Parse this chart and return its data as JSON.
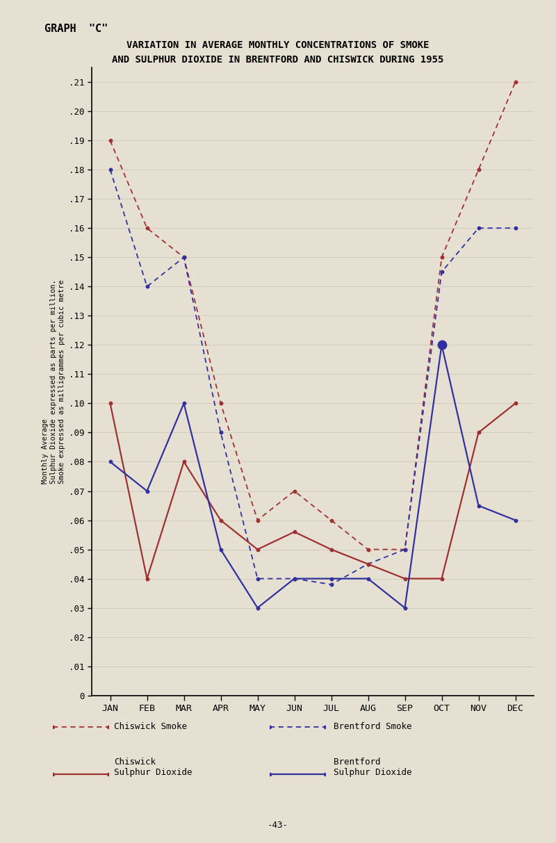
{
  "title_top": "GRAPH  \"C\"",
  "title_main_line1": "VARIATION IN AVERAGE MONTHLY CONCENTRATIONS OF SMOKE",
  "title_main_line2": "AND SULPHUR DIOXIDE IN BRENTFORD AND CHISWICK DURING 1955",
  "months": [
    "JAN",
    "FEB",
    "MAR",
    "APR",
    "MAY",
    "JUN",
    "JUL",
    "AUG",
    "SEP",
    "OCT",
    "NOV",
    "DEC"
  ],
  "chiswick_smoke": [
    0.19,
    0.16,
    0.15,
    0.1,
    0.06,
    0.07,
    0.06,
    0.05,
    0.05,
    0.15,
    0.18,
    0.21
  ],
  "brentford_smoke": [
    0.18,
    0.14,
    0.15,
    0.09,
    0.04,
    0.04,
    0.038,
    0.045,
    0.05,
    0.145,
    0.16,
    0.16
  ],
  "chiswick_so2": [
    0.1,
    0.04,
    0.08,
    0.06,
    0.05,
    0.056,
    0.05,
    0.045,
    0.04,
    0.04,
    0.09,
    0.1
  ],
  "brentford_so2": [
    0.08,
    0.07,
    0.1,
    0.05,
    0.03,
    0.04,
    0.04,
    0.04,
    0.03,
    0.12,
    0.065,
    0.06
  ],
  "brentford_so2_big_dot_idx": 9,
  "red_color": "#a03030",
  "blue_color": "#3030a0",
  "bg_color": "#e5e0d2",
  "yticks": [
    0,
    0.01,
    0.02,
    0.03,
    0.04,
    0.05,
    0.06,
    0.07,
    0.08,
    0.09,
    0.1,
    0.11,
    0.12,
    0.13,
    0.14,
    0.15,
    0.16,
    0.17,
    0.18,
    0.19,
    0.2,
    0.21
  ],
  "ylim": [
    0,
    0.215
  ],
  "ylabel_lines": [
    "Monthly Average",
    "Sulphur Dioxide expressed as parts per million.",
    "Smoke expressed as milligrammes per cubic metre"
  ],
  "legend_chiswick_smoke": "Chiswick Smoke",
  "legend_brentford_smoke": "Brentford Smoke",
  "legend_chiswick_so2_1": "Chiswick",
  "legend_chiswick_so2_2": "Sulphur Dioxide",
  "legend_brentford_so2_1": "Brentford",
  "legend_brentford_so2_2": "Sulphur Dioxide",
  "page_number": "-43-"
}
